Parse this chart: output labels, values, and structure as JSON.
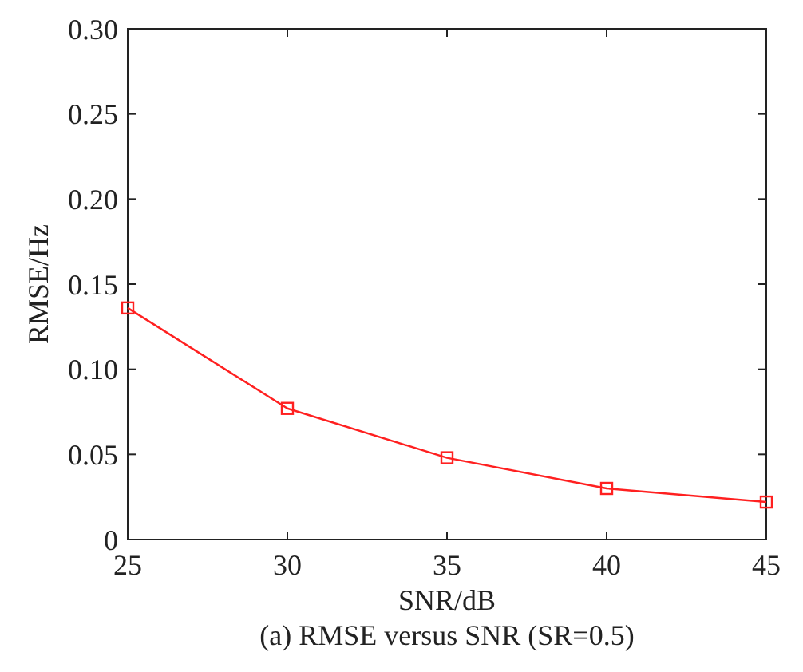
{
  "chart_data": {
    "type": "line",
    "title": "(a) RMSE versus SNR (SR=0.5)",
    "xlabel": "SNR/dB",
    "ylabel": "RMSE/Hz",
    "x": [
      25,
      30,
      35,
      40,
      45
    ],
    "series": [
      {
        "color": "#ff2020",
        "values": [
          0.136,
          0.077,
          0.048,
          0.03,
          0.022
        ]
      }
    ],
    "xlim": [
      25,
      45
    ],
    "xticks": [
      25,
      30,
      35,
      40,
      45
    ],
    "ylim": [
      0,
      0.3
    ],
    "yticks": [
      {
        "value": 0,
        "label": "0"
      },
      {
        "value": 0.05,
        "label": "0.05"
      },
      {
        "value": 0.1,
        "label": "0.10"
      },
      {
        "value": 0.15,
        "label": "0.15"
      },
      {
        "value": 0.2,
        "label": "0.20"
      },
      {
        "value": 0.25,
        "label": "0.25"
      },
      {
        "value": 0.3,
        "label": "0.30"
      }
    ],
    "marker": "square",
    "grid": false
  }
}
